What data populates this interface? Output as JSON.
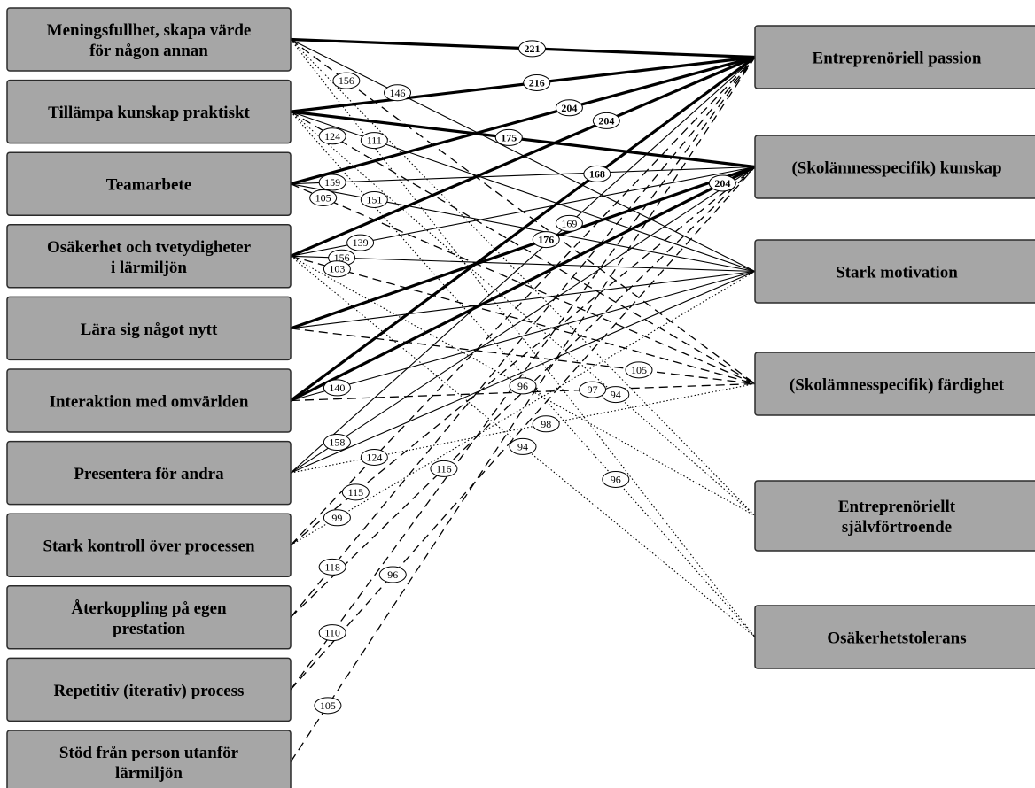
{
  "left_nodes": [
    {
      "id": "meningsfullhet",
      "lines": [
        "Meningsfullhet, skapa värde",
        "för någon annan"
      ]
    },
    {
      "id": "tillampa",
      "lines": [
        "Tillämpa kunskap praktiskt"
      ]
    },
    {
      "id": "teamarbete",
      "lines": [
        "Teamarbete"
      ]
    },
    {
      "id": "osakerhet",
      "lines": [
        "Osäkerhet och tvetydigheter",
        "i lärmiljön"
      ]
    },
    {
      "id": "lara",
      "lines": [
        "Lära sig något nytt"
      ]
    },
    {
      "id": "interaktion",
      "lines": [
        "Interaktion med omvärlden"
      ]
    },
    {
      "id": "presentera",
      "lines": [
        "Presentera för andra"
      ]
    },
    {
      "id": "kontroll",
      "lines": [
        "Stark kontroll över processen"
      ]
    },
    {
      "id": "aterkoppling",
      "lines": [
        "Återkoppling på egen",
        "prestation"
      ]
    },
    {
      "id": "repetitiv",
      "lines": [
        "Repetitiv (iterativ) process"
      ]
    },
    {
      "id": "stod",
      "lines": [
        "Stöd från person utanför",
        "lärmiljön"
      ]
    }
  ],
  "right_nodes": [
    {
      "id": "passion",
      "lines": [
        "Entreprenöriell passion"
      ]
    },
    {
      "id": "kunskap",
      "lines": [
        "(Skolämnesspecifik) kunskap"
      ]
    },
    {
      "id": "motivation",
      "lines": [
        "Stark motivation"
      ]
    },
    {
      "id": "fardighet",
      "lines": [
        "(Skolämnesspecifik) färdighet"
      ]
    },
    {
      "id": "sjalvfortroende",
      "lines": [
        "Entreprenöriellt",
        "självförtroende"
      ]
    },
    {
      "id": "osakerhetstolerans",
      "lines": [
        "Osäkerhetstolerans"
      ]
    }
  ],
  "edges": [
    {
      "from": "meningsfullhet",
      "to": "passion",
      "value": "221",
      "style": "thick"
    },
    {
      "from": "meningsfullhet",
      "to": "motivation",
      "value": "146",
      "style": "thin"
    },
    {
      "from": "meningsfullhet",
      "to": "fardighet",
      "value": "156",
      "style": "dashed"
    },
    {
      "from": "meningsfullhet",
      "to": "sjalvfortroende",
      "value": "",
      "style": "dotted"
    },
    {
      "from": "meningsfullhet",
      "to": "osakerhetstolerans",
      "value": "",
      "style": "dotted"
    },
    {
      "from": "tillampa",
      "to": "passion",
      "value": "216",
      "style": "thick"
    },
    {
      "from": "tillampa",
      "to": "kunskap",
      "value": "175",
      "style": "thick"
    },
    {
      "from": "tillampa",
      "to": "motivation",
      "value": "111",
      "style": "thin"
    },
    {
      "from": "tillampa",
      "to": "fardighet",
      "value": "124",
      "style": "dashed"
    },
    {
      "from": "tillampa",
      "to": "sjalvfortroende",
      "value": "94",
      "style": "dotted"
    },
    {
      "from": "tillampa",
      "to": "osakerhetstolerans",
      "value": "96",
      "style": "dotted"
    },
    {
      "from": "teamarbete",
      "to": "passion",
      "value": "204",
      "style": "thick"
    },
    {
      "from": "teamarbete",
      "to": "kunskap",
      "value": "159",
      "style": "thin"
    },
    {
      "from": "teamarbete",
      "to": "motivation",
      "value": "151",
      "style": "thin"
    },
    {
      "from": "teamarbete",
      "to": "fardighet",
      "value": "105",
      "style": "dashed"
    },
    {
      "from": "osakerhet",
      "to": "passion",
      "value": "204",
      "style": "thick"
    },
    {
      "from": "osakerhet",
      "to": "kunskap",
      "value": "139",
      "style": "thin"
    },
    {
      "from": "osakerhet",
      "to": "motivation",
      "value": "156",
      "style": "thin"
    },
    {
      "from": "osakerhet",
      "to": "fardighet",
      "value": "103",
      "style": "dashed"
    },
    {
      "from": "osakerhet",
      "to": "sjalvfortroende",
      "value": "96",
      "style": "dotted"
    },
    {
      "from": "osakerhet",
      "to": "osakerhetstolerans",
      "value": "94",
      "style": "dotted"
    },
    {
      "from": "lara",
      "to": "kunskap",
      "value": "176",
      "style": "thick"
    },
    {
      "from": "lara",
      "to": "motivation",
      "value": "",
      "style": "thin"
    },
    {
      "from": "lara",
      "to": "fardighet",
      "value": "105",
      "style": "dashed"
    },
    {
      "from": "interaktion",
      "to": "passion",
      "value": "168",
      "style": "thick"
    },
    {
      "from": "interaktion",
      "to": "kunskap",
      "value": "204",
      "style": "thick"
    },
    {
      "from": "interaktion",
      "to": "motivation",
      "value": "140",
      "style": "thin"
    },
    {
      "from": "interaktion",
      "to": "fardighet",
      "value": "97",
      "style": "dashed"
    },
    {
      "from": "presentera",
      "to": "passion",
      "value": "169",
      "style": "thin"
    },
    {
      "from": "presentera",
      "to": "kunskap",
      "value": "158",
      "style": "thin"
    },
    {
      "from": "presentera",
      "to": "motivation",
      "value": "",
      "style": "thin"
    },
    {
      "from": "presentera",
      "to": "fardighet",
      "value": "98",
      "style": "dotted"
    },
    {
      "from": "kontroll",
      "to": "passion",
      "value": "124",
      "style": "dashed"
    },
    {
      "from": "kontroll",
      "to": "kunskap",
      "value": "115",
      "style": "dashed"
    },
    {
      "from": "kontroll",
      "to": "motivation",
      "value": "99",
      "style": "dotted"
    },
    {
      "from": "aterkoppling",
      "to": "passion",
      "value": "118",
      "style": "dashed"
    },
    {
      "from": "aterkoppling",
      "to": "kunskap",
      "value": "116",
      "style": "dashed"
    },
    {
      "from": "repetitiv",
      "to": "passion",
      "value": "110",
      "style": "dashed"
    },
    {
      "from": "repetitiv",
      "to": "kunskap",
      "value": "96",
      "style": "dashed"
    },
    {
      "from": "stod",
      "to": "passion",
      "value": "105",
      "style": "dashed"
    }
  ]
}
